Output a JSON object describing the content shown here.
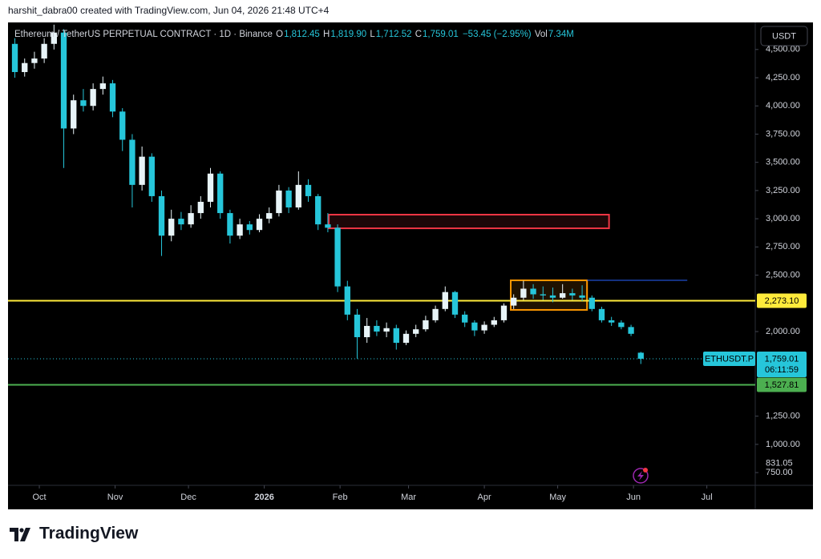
{
  "chart_data": {
    "type": "candlestick",
    "header": "harshit_dabra00 created with TradingView.com, Jun 04, 2026 21:48 UTC+4",
    "brand": "TradingView",
    "currency_button": "USDT",
    "legend": {
      "symbol": "Ethereum / TetherUS PERPETUAL CONTRACT · 1D · Binance",
      "ohlc": [
        {
          "key": "O",
          "value": "1,812.45"
        },
        {
          "key": "H",
          "value": "1,819.90"
        },
        {
          "key": "L",
          "value": "1,712.52"
        },
        {
          "key": "C",
          "value": "1,759.01"
        }
      ],
      "change": "−53.45 (−2.95%)",
      "volume_key": "Vol",
      "volume": "7.34M"
    },
    "up_color": "#e8f4f8",
    "down_color": "#26c6da",
    "grid": false,
    "x": [
      -10,
      -6,
      -2,
      2,
      6,
      10,
      14,
      18,
      22,
      26,
      30,
      34,
      38,
      42,
      46,
      50,
      54,
      58,
      62,
      66,
      70,
      74,
      78,
      82,
      86,
      90,
      94,
      98,
      102,
      106,
      110,
      114,
      118,
      122,
      126,
      130,
      134,
      138,
      142,
      146,
      150,
      154,
      158,
      162,
      166,
      170,
      174,
      178,
      182,
      186,
      190,
      194,
      198,
      202,
      206,
      210,
      214,
      218,
      222,
      226,
      230,
      234,
      238,
      242,
      246
    ],
    "open": [
      4550,
      4300,
      4380,
      4420,
      4550,
      4650,
      3800,
      4050,
      4000,
      4150,
      4200,
      3950,
      3700,
      3300,
      3550,
      3200,
      2850,
      3000,
      2950,
      3050,
      3150,
      3400,
      3050,
      2850,
      2950,
      2900,
      3000,
      3050,
      3250,
      3100,
      3300,
      3200,
      2950,
      2920,
      2400,
      2150,
      1950,
      2050,
      2000,
      2030,
      1900,
      1980,
      2020,
      2100,
      2200,
      2350,
      2150,
      2080,
      2010,
      2060,
      2100,
      2230,
      2300,
      2380,
      2330,
      2320,
      2300,
      2340,
      2320,
      2300,
      2200,
      2100,
      2080,
      2040,
      1812.45
    ],
    "high": [
      4600,
      4420,
      4480,
      4600,
      4720,
      4680,
      4100,
      4150,
      4200,
      4260,
      4230,
      3980,
      3750,
      3640,
      3580,
      3250,
      3080,
      3060,
      3120,
      3200,
      3450,
      3420,
      3080,
      3000,
      2980,
      3040,
      3100,
      3300,
      3280,
      3420,
      3350,
      3220,
      3050,
      2950,
      2450,
      2200,
      2120,
      2100,
      2080,
      2060,
      2010,
      2060,
      2140,
      2230,
      2400,
      2360,
      2180,
      2100,
      2090,
      2130,
      2250,
      2330,
      2450,
      2420,
      2400,
      2390,
      2420,
      2380,
      2410,
      2320,
      2220,
      2130,
      2100,
      2060,
      1819.9
    ],
    "low": [
      4250,
      4260,
      4330,
      4380,
      4500,
      3450,
      3750,
      3950,
      3960,
      4100,
      3900,
      3600,
      3100,
      3250,
      3150,
      2670,
      2800,
      2900,
      2920,
      3000,
      3100,
      3000,
      2780,
      2820,
      2860,
      2880,
      2960,
      3020,
      3050,
      3080,
      3150,
      2900,
      2880,
      2350,
      2100,
      1760,
      1900,
      1960,
      1950,
      1840,
      1880,
      1950,
      2000,
      2080,
      2180,
      2120,
      2040,
      1960,
      1980,
      2040,
      2080,
      2200,
      2280,
      2290,
      2280,
      2260,
      2290,
      2280,
      2270,
      2180,
      2080,
      2050,
      2020,
      1960,
      1712.52
    ],
    "close": [
      4300,
      4380,
      4420,
      4550,
      4650,
      3800,
      4050,
      4000,
      4150,
      4200,
      3950,
      3700,
      3300,
      3550,
      3200,
      2850,
      3000,
      2950,
      3050,
      3150,
      3400,
      3050,
      2850,
      2950,
      2900,
      3000,
      3050,
      3250,
      3100,
      3300,
      3200,
      2950,
      2920,
      2400,
      2150,
      1950,
      2050,
      2000,
      2030,
      1900,
      1980,
      2020,
      2100,
      2200,
      2350,
      2150,
      2080,
      2010,
      2060,
      2100,
      2230,
      2300,
      2380,
      2330,
      2320,
      2300,
      2340,
      2320,
      2300,
      2200,
      2100,
      2080,
      2040,
      1980,
      1759.01
    ],
    "xlim": [
      -12.8,
      292.8
    ],
    "xticks": [
      {
        "value": 0,
        "label": "Oct"
      },
      {
        "value": 31,
        "label": "Nov"
      },
      {
        "value": 61,
        "label": "Dec"
      },
      {
        "value": 92,
        "label": "2026"
      },
      {
        "value": 123,
        "label": "Feb"
      },
      {
        "value": 151,
        "label": "Mar"
      },
      {
        "value": 182,
        "label": "Apr"
      },
      {
        "value": 212,
        "label": "May"
      },
      {
        "value": 243,
        "label": "Jun"
      },
      {
        "value": 273,
        "label": "Jul"
      }
    ],
    "ylim": [
      637,
      4740
    ],
    "yticks": [
      {
        "value": 750,
        "label": "750.00"
      },
      {
        "value": 1000,
        "label": "1,000.00"
      },
      {
        "value": 1250,
        "label": "1,250.00"
      },
      {
        "value": 2000,
        "label": "2,000.00"
      },
      {
        "value": 2500,
        "label": "2,500.00"
      },
      {
        "value": 2750,
        "label": "2,750.00"
      },
      {
        "value": 3000,
        "label": "3,000.00"
      },
      {
        "value": 3250,
        "label": "3,250.00"
      },
      {
        "value": 3500,
        "label": "3,500.00"
      },
      {
        "value": 3750,
        "label": "3,750.00"
      },
      {
        "value": 4000,
        "label": "4,000.00"
      },
      {
        "value": 4250,
        "label": "4,250.00"
      },
      {
        "value": 4500,
        "label": "4,500.00"
      }
    ],
    "axis_marker": {
      "value": 831.05,
      "label": "831.05"
    },
    "levels": [
      {
        "value": 2273.1,
        "label": "2,273.10",
        "color": "#ffeb3b"
      },
      {
        "value": 1527.81,
        "label": "1,527.81",
        "color": "#4caf50"
      }
    ],
    "current_price": {
      "value": 1759.01,
      "label": "1,759.01",
      "symbol": "ETHUSDT.P",
      "countdown": "06:11:59",
      "color": "#26c6da"
    },
    "zones": [
      {
        "x": [
          118.4,
          233
        ],
        "y": [
          2915,
          3036
        ],
        "color": "#f23645"
      },
      {
        "x": [
          192.8,
          224
        ],
        "y": [
          2192,
          2454
        ],
        "color": "#ff9800"
      }
    ],
    "rays": [
      {
        "x": [
          224,
          265
        ],
        "value": 2454,
        "color": "#2962ff"
      }
    ]
  }
}
